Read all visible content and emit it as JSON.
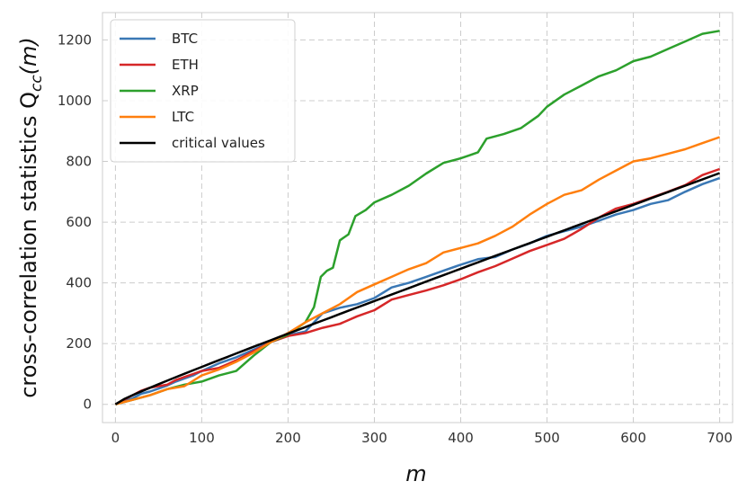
{
  "chart_data": {
    "type": "line",
    "xlabel": "m",
    "ylabel": "cross-correlation statistics Q",
    "ylabel_sub": "cc",
    "ylabel_arg": "(m)",
    "xlim": [
      -15,
      715
    ],
    "ylim": [
      -60,
      1290
    ],
    "xticks": [
      0,
      100,
      200,
      300,
      400,
      500,
      600,
      700
    ],
    "yticks": [
      0,
      200,
      400,
      600,
      800,
      1000,
      1200
    ],
    "grid": true,
    "legend_position": "top-left",
    "series": [
      {
        "name": "BTC",
        "color": "#3a78b5",
        "points": [
          [
            0,
            0
          ],
          [
            10,
            10
          ],
          [
            20,
            20
          ],
          [
            30,
            35
          ],
          [
            40,
            42
          ],
          [
            50,
            52
          ],
          [
            60,
            62
          ],
          [
            70,
            75
          ],
          [
            80,
            85
          ],
          [
            90,
            95
          ],
          [
            100,
            110
          ],
          [
            120,
            135
          ],
          [
            140,
            155
          ],
          [
            160,
            180
          ],
          [
            180,
            205
          ],
          [
            200,
            228
          ],
          [
            220,
            240
          ],
          [
            240,
            300
          ],
          [
            260,
            318
          ],
          [
            280,
            330
          ],
          [
            300,
            350
          ],
          [
            320,
            385
          ],
          [
            340,
            400
          ],
          [
            360,
            420
          ],
          [
            380,
            440
          ],
          [
            400,
            460
          ],
          [
            420,
            478
          ],
          [
            440,
            485
          ],
          [
            460,
            510
          ],
          [
            480,
            530
          ],
          [
            500,
            555
          ],
          [
            520,
            570
          ],
          [
            540,
            585
          ],
          [
            560,
            605
          ],
          [
            580,
            625
          ],
          [
            600,
            640
          ],
          [
            620,
            660
          ],
          [
            640,
            672
          ],
          [
            660,
            700
          ],
          [
            680,
            725
          ],
          [
            700,
            745
          ]
        ]
      },
      {
        "name": "ETH",
        "color": "#d62728",
        "points": [
          [
            0,
            0
          ],
          [
            10,
            15
          ],
          [
            20,
            30
          ],
          [
            30,
            45
          ],
          [
            40,
            55
          ],
          [
            50,
            60
          ],
          [
            60,
            65
          ],
          [
            70,
            80
          ],
          [
            80,
            90
          ],
          [
            90,
            100
          ],
          [
            100,
            110
          ],
          [
            120,
            120
          ],
          [
            140,
            145
          ],
          [
            160,
            175
          ],
          [
            180,
            205
          ],
          [
            200,
            225
          ],
          [
            220,
            235
          ],
          [
            240,
            252
          ],
          [
            260,
            265
          ],
          [
            280,
            290
          ],
          [
            300,
            310
          ],
          [
            320,
            345
          ],
          [
            340,
            360
          ],
          [
            360,
            375
          ],
          [
            380,
            392
          ],
          [
            400,
            412
          ],
          [
            420,
            435
          ],
          [
            440,
            455
          ],
          [
            460,
            480
          ],
          [
            480,
            505
          ],
          [
            500,
            525
          ],
          [
            520,
            545
          ],
          [
            540,
            578
          ],
          [
            560,
            615
          ],
          [
            580,
            645
          ],
          [
            600,
            660
          ],
          [
            620,
            680
          ],
          [
            640,
            700
          ],
          [
            660,
            722
          ],
          [
            680,
            755
          ],
          [
            700,
            775
          ]
        ]
      },
      {
        "name": "XRP",
        "color": "#2ca02c",
        "points": [
          [
            0,
            0
          ],
          [
            20,
            15
          ],
          [
            40,
            30
          ],
          [
            60,
            50
          ],
          [
            80,
            65
          ],
          [
            100,
            75
          ],
          [
            120,
            95
          ],
          [
            140,
            110
          ],
          [
            160,
            160
          ],
          [
            180,
            205
          ],
          [
            200,
            230
          ],
          [
            220,
            270
          ],
          [
            230,
            320
          ],
          [
            238,
            420
          ],
          [
            245,
            440
          ],
          [
            252,
            450
          ],
          [
            260,
            540
          ],
          [
            270,
            560
          ],
          [
            278,
            620
          ],
          [
            290,
            640
          ],
          [
            300,
            665
          ],
          [
            320,
            690
          ],
          [
            340,
            720
          ],
          [
            360,
            760
          ],
          [
            380,
            795
          ],
          [
            400,
            810
          ],
          [
            410,
            820
          ],
          [
            420,
            830
          ],
          [
            430,
            875
          ],
          [
            450,
            890
          ],
          [
            470,
            910
          ],
          [
            490,
            950
          ],
          [
            500,
            980
          ],
          [
            520,
            1020
          ],
          [
            540,
            1050
          ],
          [
            560,
            1080
          ],
          [
            580,
            1100
          ],
          [
            600,
            1130
          ],
          [
            620,
            1145
          ],
          [
            640,
            1170
          ],
          [
            660,
            1195
          ],
          [
            680,
            1220
          ],
          [
            700,
            1230
          ]
        ]
      },
      {
        "name": "LTC",
        "color": "#ff7f0e",
        "points": [
          [
            0,
            0
          ],
          [
            20,
            15
          ],
          [
            40,
            30
          ],
          [
            60,
            50
          ],
          [
            80,
            60
          ],
          [
            100,
            95
          ],
          [
            120,
            115
          ],
          [
            140,
            140
          ],
          [
            160,
            170
          ],
          [
            180,
            205
          ],
          [
            200,
            235
          ],
          [
            220,
            270
          ],
          [
            240,
            300
          ],
          [
            260,
            330
          ],
          [
            280,
            370
          ],
          [
            300,
            395
          ],
          [
            320,
            420
          ],
          [
            340,
            445
          ],
          [
            360,
            465
          ],
          [
            380,
            500
          ],
          [
            400,
            515
          ],
          [
            420,
            530
          ],
          [
            440,
            555
          ],
          [
            460,
            585
          ],
          [
            480,
            625
          ],
          [
            500,
            660
          ],
          [
            520,
            690
          ],
          [
            540,
            705
          ],
          [
            560,
            740
          ],
          [
            580,
            770
          ],
          [
            600,
            800
          ],
          [
            620,
            810
          ],
          [
            640,
            825
          ],
          [
            660,
            840
          ],
          [
            680,
            860
          ],
          [
            700,
            880
          ]
        ]
      },
      {
        "name": "critical values",
        "color": "#000000",
        "function": "critical"
      }
    ]
  }
}
